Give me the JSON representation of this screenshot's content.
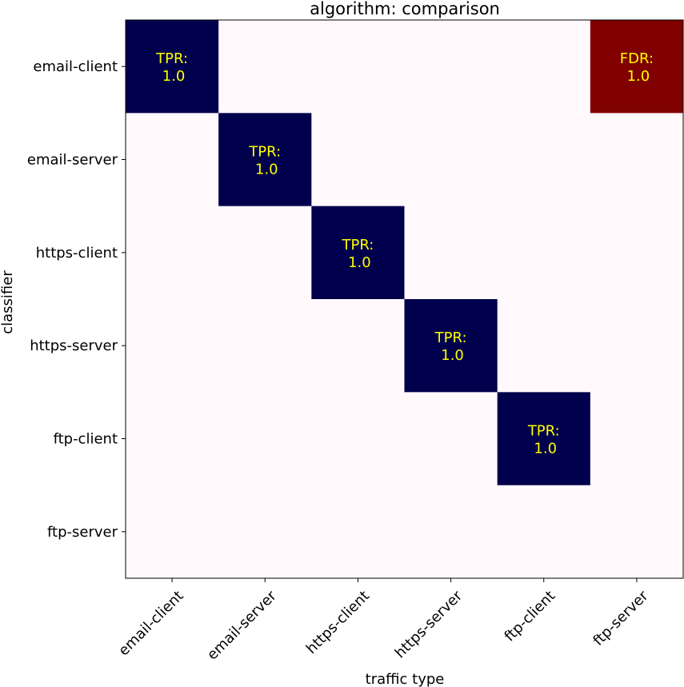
{
  "chart_data": {
    "type": "heatmap",
    "title": "algorithm: comparison",
    "xlabel": "traffic type",
    "ylabel": "classifier",
    "x_categories": [
      "email-client",
      "email-server",
      "https-client",
      "https-server",
      "ftp-client",
      "ftp-server"
    ],
    "y_categories": [
      "email-client",
      "email-server",
      "https-client",
      "https-server",
      "ftp-client",
      "ftp-server"
    ],
    "cells": [
      {
        "row": "email-client",
        "col": "email-client",
        "value": -1.0,
        "metric": "TPR",
        "display": "1.0"
      },
      {
        "row": "email-client",
        "col": "ftp-server",
        "value": 1.0,
        "metric": "FDR",
        "display": "1.0"
      },
      {
        "row": "email-server",
        "col": "email-server",
        "value": -1.0,
        "metric": "TPR",
        "display": "1.0"
      },
      {
        "row": "https-client",
        "col": "https-client",
        "value": -1.0,
        "metric": "TPR",
        "display": "1.0"
      },
      {
        "row": "https-server",
        "col": "https-server",
        "value": -1.0,
        "metric": "TPR",
        "display": "1.0"
      },
      {
        "row": "ftp-client",
        "col": "ftp-client",
        "value": -1.0,
        "metric": "TPR",
        "display": "1.0"
      }
    ],
    "vlim": [
      -1,
      1
    ],
    "colormap": "seismic",
    "colors": {
      "low": "#00004c",
      "mid": "#fff9fb",
      "high": "#800000",
      "annotation_text": "#ffff00"
    },
    "grid": false,
    "legend": "none"
  }
}
